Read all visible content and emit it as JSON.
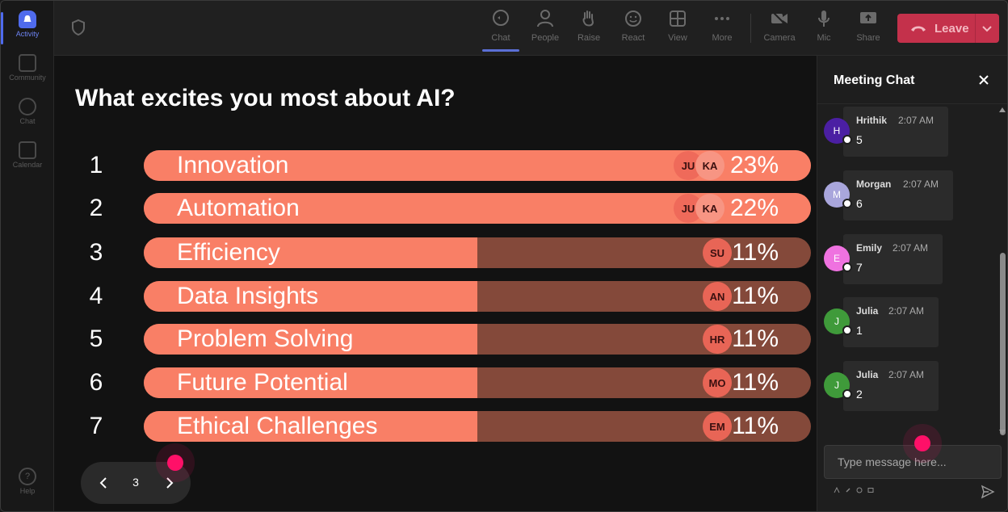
{
  "rail": {
    "items": [
      {
        "label": "Activity",
        "icon": "bell-icon",
        "active": true
      },
      {
        "label": "Community",
        "icon": "community-icon",
        "active": false
      },
      {
        "label": "Chat",
        "icon": "chat-icon",
        "active": false
      },
      {
        "label": "Calendar",
        "icon": "calendar-icon",
        "active": false
      }
    ],
    "help_label": "Help"
  },
  "toolbar": {
    "chat_label": "Chat",
    "people_label": "People",
    "raise_label": "Raise",
    "react_label": "React",
    "view_label": "View",
    "more_label": "More",
    "camera_label": "Camera",
    "mic_label": "Mic",
    "share_label": "Share",
    "leave_label": "Leave"
  },
  "poll": {
    "title": "What excites you most about AI?",
    "rows": [
      {
        "num": "1",
        "label": "Innovation",
        "pct": "23%",
        "fill": 1.0,
        "avatars": [
          "JU",
          "KA"
        ]
      },
      {
        "num": "2",
        "label": "Automation",
        "pct": "22%",
        "fill": 1.0,
        "avatars": [
          "JU",
          "KA"
        ]
      },
      {
        "num": "3",
        "label": "Efficiency",
        "pct": "11%",
        "fill": 0.5,
        "avatars": [
          "SU"
        ]
      },
      {
        "num": "4",
        "label": "Data Insights",
        "pct": "11%",
        "fill": 0.5,
        "avatars": [
          "AN"
        ]
      },
      {
        "num": "5",
        "label": "Problem Solving",
        "pct": "11%",
        "fill": 0.5,
        "avatars": [
          "HR"
        ]
      },
      {
        "num": "6",
        "label": "Future Potential",
        "pct": "11%",
        "fill": 0.5,
        "avatars": [
          "MO"
        ]
      },
      {
        "num": "7",
        "label": "Ethical Challenges",
        "pct": "11%",
        "fill": 0.5,
        "avatars": [
          "EM"
        ]
      }
    ],
    "page": "3"
  },
  "chat": {
    "title": "Meeting Chat",
    "messages": [
      {
        "initial": "H",
        "name": "Hrithik",
        "time": "2:07 AM",
        "text": "5",
        "color": "#4b1fa3"
      },
      {
        "initial": "M",
        "name": "Morgan",
        "time": "2:07 AM",
        "text": "6",
        "color": "#a9a6dc"
      },
      {
        "initial": "E",
        "name": "Emily",
        "time": "2:07 AM",
        "text": "7",
        "color": "#ef72e0"
      },
      {
        "initial": "J",
        "name": "Julia",
        "time": "2:07 AM",
        "text": "1",
        "color": "#3f9a3a"
      },
      {
        "initial": "J",
        "name": "Julia",
        "time": "2:07 AM",
        "text": "2",
        "color": "#3f9a3a"
      }
    ],
    "input_placeholder": "Type message here..."
  },
  "colors": {
    "bar_fill": "#f97f66",
    "bar_track": "#84493a",
    "leave": "#c4314b",
    "accent": "#4f6bed"
  }
}
